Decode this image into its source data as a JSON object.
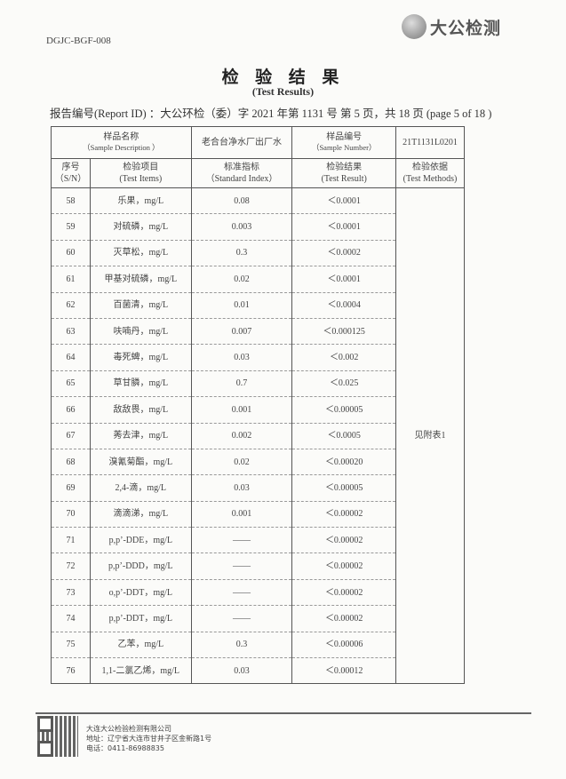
{
  "header": {
    "form_code": "DGJC-BGF-008",
    "logo_text": "大公检测",
    "title": "检 验 结 果",
    "subtitle": "(Test Results)",
    "report_line": "报告编号(Report ID) ：大公环检（委）字 2021 年第 1131 号  第 5 页，共 18 页  (page 5 of 18 )"
  },
  "table": {
    "sample_desc_cn": "样品名称",
    "sample_desc_en": "（Sample Description ）",
    "sample_desc_value": "老合台净水厂出厂水",
    "sample_no_cn": "样品编号",
    "sample_no_en": "（Sample   Number）",
    "sample_no_value": "21T1131L0201",
    "columns": [
      {
        "cn": "序号",
        "en": "（S/N）"
      },
      {
        "cn": "检验项目",
        "en": "(Test Items)"
      },
      {
        "cn": "标准指标",
        "en": "（Standard Index）"
      },
      {
        "cn": "检验结果",
        "en": "(Test Result)"
      },
      {
        "cn": "检验依据",
        "en": "(Test Methods)"
      }
    ],
    "method_value": "见附表1",
    "rows": [
      [
        "58",
        "乐果，mg/L",
        "0.08",
        "＜0.0001"
      ],
      [
        "59",
        "对硫磷，mg/L",
        "0.003",
        "＜0.0001"
      ],
      [
        "60",
        "灭草松，mg/L",
        "0.3",
        "＜0.0002"
      ],
      [
        "61",
        "甲基对硫磷，mg/L",
        "0.02",
        "＜0.0001"
      ],
      [
        "62",
        "百菌清，mg/L",
        "0.01",
        "＜0.0004"
      ],
      [
        "63",
        "呋喃丹，mg/L",
        "0.007",
        "＜0.000125"
      ],
      [
        "64",
        "毒死蜱，mg/L",
        "0.03",
        "＜0.002"
      ],
      [
        "65",
        "草甘膦，mg/L",
        "0.7",
        "＜0.025"
      ],
      [
        "66",
        "敌敌畏，mg/L",
        "0.001",
        "＜0.00005"
      ],
      [
        "67",
        "莠去津，mg/L",
        "0.002",
        "＜0.0005"
      ],
      [
        "68",
        "溴氰菊酯，mg/L",
        "0.02",
        "＜0.00020"
      ],
      [
        "69",
        "2,4-滴，mg/L",
        "0.03",
        "＜0.00005"
      ],
      [
        "70",
        "滴滴涕，mg/L",
        "0.001",
        "＜0.00002"
      ],
      [
        "71",
        "p,p’-DDE，mg/L",
        "——",
        "＜0.00002"
      ],
      [
        "72",
        "p,p’-DDD，mg/L",
        "——",
        "＜0.00002"
      ],
      [
        "73",
        "o,p’-DDT，mg/L",
        "——",
        "＜0.00002"
      ],
      [
        "74",
        "p,p’-DDT，mg/L",
        "——",
        "＜0.00002"
      ],
      [
        "75",
        "乙苯，mg/L",
        "0.3",
        "＜0.00006"
      ],
      [
        "76",
        "1,1-二氯乙烯，mg/L",
        "0.03",
        "＜0.00012"
      ]
    ]
  },
  "footer": {
    "company": "大连大公检验检测有限公司",
    "address": "地址：辽宁省大连市甘井子区金新路1号",
    "phone": "电话：0411-86988835"
  }
}
